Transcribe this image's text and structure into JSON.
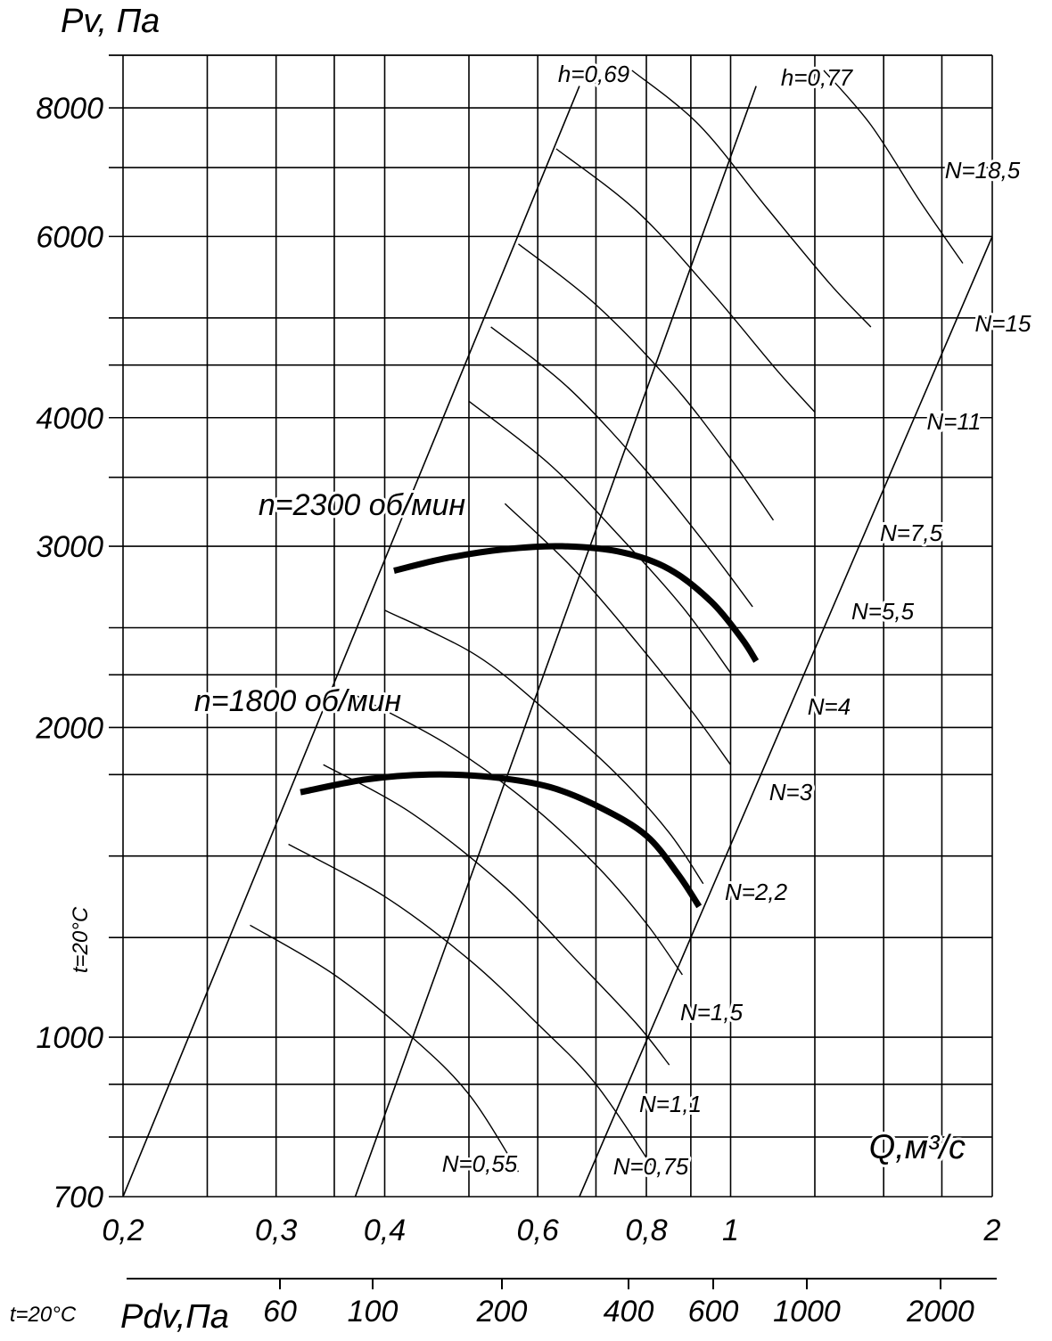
{
  "chart_data": {
    "type": "line",
    "x_scale": "log",
    "y_scale": "log",
    "xlim": [
      0.2,
      2
    ],
    "ylim": [
      700,
      9000
    ],
    "y_axis": {
      "title": "Pv, Па",
      "ticks": [
        700,
        1000,
        2000,
        3000,
        4000,
        6000,
        8000
      ],
      "tick_labels": [
        "700",
        "1000",
        "2000",
        "3000",
        "4000",
        "6000",
        "8000"
      ],
      "grid": [
        700,
        800,
        900,
        1000,
        1250,
        1500,
        1800,
        2000,
        2250,
        2500,
        3000,
        3500,
        4000,
        4500,
        5000,
        6000,
        7000,
        8000,
        9000
      ]
    },
    "x_axis": {
      "title": "Q,м³/с",
      "ticks": [
        0.2,
        0.3,
        0.4,
        0.6,
        0.8,
        1,
        2
      ],
      "tick_labels": [
        "0,2",
        "0,3",
        "0,4",
        "0,6",
        "0,8",
        "1",
        "2"
      ],
      "grid": [
        0.2,
        0.25,
        0.3,
        0.35,
        0.4,
        0.5,
        0.6,
        0.7,
        0.8,
        0.9,
        1,
        1.25,
        1.5,
        1.75,
        2
      ]
    },
    "pdv_axis": {
      "title": "Pdv,Па",
      "ticks": [
        60,
        100,
        200,
        400,
        600,
        1000,
        2000
      ],
      "tick_labels": [
        "60",
        "100",
        "200",
        "400",
        "600",
        "1000",
        "2000"
      ]
    },
    "temperature_label": "t=20°C",
    "bottom_temperature_label": "t=20°C",
    "series": [
      {
        "name": "n=2300 об/мин",
        "points": [
          [
            0.41,
            2840
          ],
          [
            0.47,
            2920
          ],
          [
            0.55,
            2980
          ],
          [
            0.64,
            3000
          ],
          [
            0.75,
            2960
          ],
          [
            0.85,
            2850
          ],
          [
            0.95,
            2650
          ],
          [
            1.03,
            2440
          ],
          [
            1.07,
            2320
          ]
        ]
      },
      {
        "name": "n=1800 об/мин",
        "points": [
          [
            0.32,
            1730
          ],
          [
            0.38,
            1780
          ],
          [
            0.45,
            1800
          ],
          [
            0.53,
            1790
          ],
          [
            0.62,
            1750
          ],
          [
            0.71,
            1670
          ],
          [
            0.8,
            1570
          ],
          [
            0.87,
            1440
          ],
          [
            0.92,
            1340
          ]
        ]
      }
    ],
    "efficiency_lines": [
      {
        "name": "h=0,69",
        "points": [
          [
            0.2,
            700
          ],
          [
            0.67,
            8400
          ]
        ]
      },
      {
        "name": "h=0,77",
        "points": [
          [
            0.67,
            700
          ],
          [
            2,
            6000
          ]
        ]
      }
    ],
    "ray_lines": [
      {
        "points": [
          [
            0.37,
            700
          ],
          [
            1.07,
            8400
          ]
        ]
      }
    ],
    "power_curves": [
      {
        "name": "N=0,55",
        "points": [
          [
            0.28,
            1285
          ],
          [
            0.35,
            1150
          ],
          [
            0.43,
            1000
          ],
          [
            0.5,
            880
          ],
          [
            0.57,
            740
          ]
        ]
      },
      {
        "name": "N=0,75",
        "points": [
          [
            0.31,
            1540
          ],
          [
            0.4,
            1370
          ],
          [
            0.5,
            1190
          ],
          [
            0.6,
            1030
          ],
          [
            0.7,
            900
          ],
          [
            0.82,
            740
          ]
        ]
      },
      {
        "name": "N=1,1",
        "points": [
          [
            0.34,
            1840
          ],
          [
            0.43,
            1650
          ],
          [
            0.55,
            1400
          ],
          [
            0.67,
            1180
          ],
          [
            0.78,
            1030
          ],
          [
            0.85,
            940
          ]
        ]
      },
      {
        "name": "N=1,5",
        "points": [
          [
            0.37,
            2150
          ],
          [
            0.47,
            1930
          ],
          [
            0.58,
            1700
          ],
          [
            0.7,
            1470
          ],
          [
            0.8,
            1290
          ],
          [
            0.88,
            1150
          ]
        ]
      },
      {
        "name": "N=2,2",
        "points": [
          [
            0.4,
            2600
          ],
          [
            0.51,
            2350
          ],
          [
            0.62,
            2060
          ],
          [
            0.74,
            1800
          ],
          [
            0.85,
            1580
          ],
          [
            0.93,
            1410
          ]
        ]
      },
      {
        "name": "N=3",
        "points": [
          [
            0.55,
            3300
          ],
          [
            0.66,
            2850
          ],
          [
            0.78,
            2420
          ],
          [
            0.9,
            2080
          ],
          [
            1.0,
            1840
          ]
        ]
      },
      {
        "name": "N=4",
        "points": [
          [
            0.5,
            4150
          ],
          [
            0.62,
            3600
          ],
          [
            0.75,
            3050
          ],
          [
            0.88,
            2620
          ],
          [
            1.0,
            2260
          ]
        ]
      },
      {
        "name": "N=5,5",
        "points": [
          [
            0.53,
            4900
          ],
          [
            0.65,
            4280
          ],
          [
            0.8,
            3550
          ],
          [
            0.94,
            3000
          ],
          [
            1.06,
            2620
          ]
        ]
      },
      {
        "name": "N=7,5",
        "points": [
          [
            0.57,
            5900
          ],
          [
            0.7,
            5150
          ],
          [
            0.86,
            4300
          ],
          [
            1.0,
            3650
          ],
          [
            1.12,
            3180
          ]
        ]
      },
      {
        "name": "N=11",
        "points": [
          [
            0.63,
            7300
          ],
          [
            0.78,
            6350
          ],
          [
            0.95,
            5300
          ],
          [
            1.13,
            4450
          ],
          [
            1.25,
            4050
          ]
        ]
      },
      {
        "name": "N=15",
        "points": [
          [
            0.77,
            8700
          ],
          [
            0.92,
            7700
          ],
          [
            1.1,
            6400
          ],
          [
            1.3,
            5400
          ],
          [
            1.45,
            4900
          ]
        ]
      },
      {
        "name": "N=18,5",
        "points": [
          [
            1.28,
            8700
          ],
          [
            1.45,
            7700
          ],
          [
            1.65,
            6500
          ],
          [
            1.85,
            5650
          ]
        ]
      }
    ],
    "labels": {
      "n2300": "n=2300 об/мин",
      "n1800": "n=1800 об/мин",
      "h69": "h=0,69",
      "h77": "h=0,77",
      "N": [
        "N=0,55",
        "N=0,75",
        "N=1,1",
        "N=1,5",
        "N=2,2",
        "N=3",
        "N=4",
        "N=5,5",
        "N=7,5",
        "N=11",
        "N=15",
        "N=18,5"
      ]
    }
  }
}
